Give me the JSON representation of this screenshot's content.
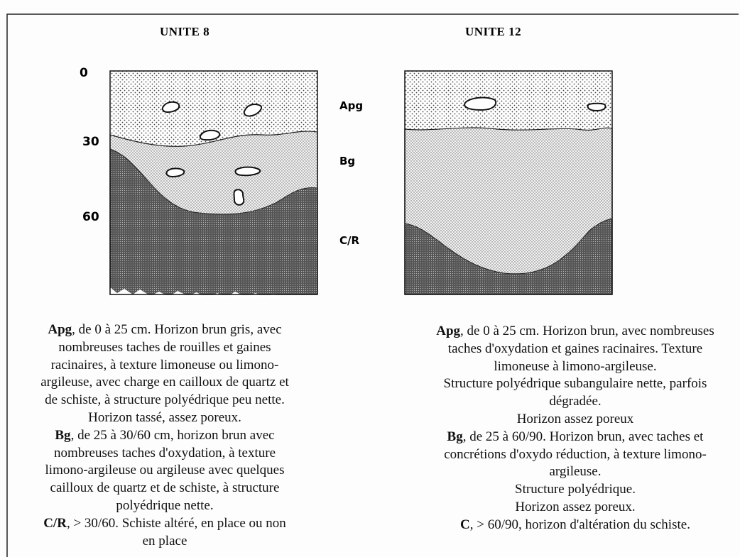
{
  "units": [
    {
      "title": "UNITE 8",
      "description": [
        {
          "bold": "Apg",
          "text": ", de 0 à 25 cm. Horizon brun gris, avec"
        },
        {
          "text": "nombreuses taches de rouilles et gaines"
        },
        {
          "text": "racinaires, à texture limoneuse ou limono-"
        },
        {
          "text": "argileuse, avec charge en cailloux de quartz et"
        },
        {
          "text": "de schiste, à structure polyédrique peu nette."
        },
        {
          "text": "Horizon tassé, assez poreux."
        },
        {
          "bold": "Bg",
          "text": ", de 25 à 30/60 cm, horizon brun avec"
        },
        {
          "text": "nombreuses taches d'oxydation, à texture"
        },
        {
          "text": "limono-argileuse ou argileuse avec quelques"
        },
        {
          "text": "cailloux de quartz et de schiste, à structure"
        },
        {
          "text": "polyédrique nette."
        },
        {
          "bold": "C/R",
          "text": ", > 30/60. Schiste altéré, en place ou non"
        },
        {
          "text": "en place"
        }
      ]
    },
    {
      "title": "UNITE 12",
      "description": [
        {
          "bold": "Apg",
          "text": ", de 0 à 25 cm. Horizon brun, avec nombreuses"
        },
        {
          "text": "taches d'oxydation et gaines racinaires. Texture"
        },
        {
          "text": "limoneuse à limono-argileuse."
        },
        {
          "text": "Structure polyédrique subangulaire nette, parfois"
        },
        {
          "text": "dégradée."
        },
        {
          "text": "Horizon assez poreux"
        },
        {
          "bold": "Bg",
          "text": ", de 25 à 60/90. Horizon brun, avec taches et"
        },
        {
          "text": "concrétions d'oxydo réduction, à texture limono-"
        },
        {
          "text": "argileuse."
        },
        {
          "text": "Structure polyédrique."
        },
        {
          "text": "Horizon assez poreux."
        },
        {
          "bold": "C",
          "text": ", > 60/90, horizon d'altération du schiste."
        }
      ]
    }
  ],
  "depth_labels": [
    "0",
    "30",
    "60"
  ],
  "horizon_labels": [
    "Apg",
    "Bg",
    "C/R"
  ]
}
